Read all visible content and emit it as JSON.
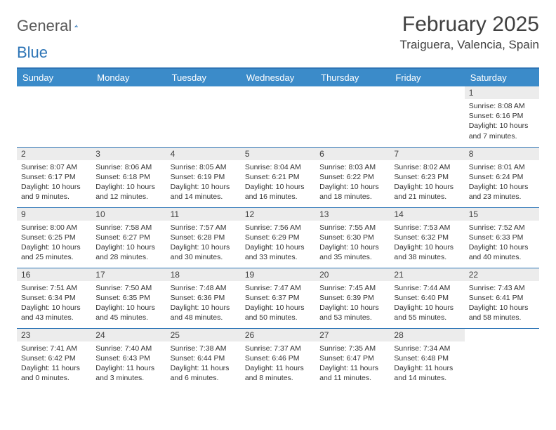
{
  "brand": {
    "word1": "General",
    "word2": "Blue"
  },
  "header": {
    "month": "February 2025",
    "location": "Traiguera, Valencia, Spain"
  },
  "colors": {
    "accent": "#2e75b6",
    "header_bg": "#3b8bc9",
    "daynum_bg": "#ececec",
    "text": "#333333"
  },
  "weekdays": [
    "Sunday",
    "Monday",
    "Tuesday",
    "Wednesday",
    "Thursday",
    "Friday",
    "Saturday"
  ],
  "weeks": [
    [
      null,
      null,
      null,
      null,
      null,
      null,
      {
        "n": "1",
        "sr": "8:08 AM",
        "ss": "6:16 PM",
        "dl": "10 hours and 7 minutes."
      }
    ],
    [
      {
        "n": "2",
        "sr": "8:07 AM",
        "ss": "6:17 PM",
        "dl": "10 hours and 9 minutes."
      },
      {
        "n": "3",
        "sr": "8:06 AM",
        "ss": "6:18 PM",
        "dl": "10 hours and 12 minutes."
      },
      {
        "n": "4",
        "sr": "8:05 AM",
        "ss": "6:19 PM",
        "dl": "10 hours and 14 minutes."
      },
      {
        "n": "5",
        "sr": "8:04 AM",
        "ss": "6:21 PM",
        "dl": "10 hours and 16 minutes."
      },
      {
        "n": "6",
        "sr": "8:03 AM",
        "ss": "6:22 PM",
        "dl": "10 hours and 18 minutes."
      },
      {
        "n": "7",
        "sr": "8:02 AM",
        "ss": "6:23 PM",
        "dl": "10 hours and 21 minutes."
      },
      {
        "n": "8",
        "sr": "8:01 AM",
        "ss": "6:24 PM",
        "dl": "10 hours and 23 minutes."
      }
    ],
    [
      {
        "n": "9",
        "sr": "8:00 AM",
        "ss": "6:25 PM",
        "dl": "10 hours and 25 minutes."
      },
      {
        "n": "10",
        "sr": "7:58 AM",
        "ss": "6:27 PM",
        "dl": "10 hours and 28 minutes."
      },
      {
        "n": "11",
        "sr": "7:57 AM",
        "ss": "6:28 PM",
        "dl": "10 hours and 30 minutes."
      },
      {
        "n": "12",
        "sr": "7:56 AM",
        "ss": "6:29 PM",
        "dl": "10 hours and 33 minutes."
      },
      {
        "n": "13",
        "sr": "7:55 AM",
        "ss": "6:30 PM",
        "dl": "10 hours and 35 minutes."
      },
      {
        "n": "14",
        "sr": "7:53 AM",
        "ss": "6:32 PM",
        "dl": "10 hours and 38 minutes."
      },
      {
        "n": "15",
        "sr": "7:52 AM",
        "ss": "6:33 PM",
        "dl": "10 hours and 40 minutes."
      }
    ],
    [
      {
        "n": "16",
        "sr": "7:51 AM",
        "ss": "6:34 PM",
        "dl": "10 hours and 43 minutes."
      },
      {
        "n": "17",
        "sr": "7:50 AM",
        "ss": "6:35 PM",
        "dl": "10 hours and 45 minutes."
      },
      {
        "n": "18",
        "sr": "7:48 AM",
        "ss": "6:36 PM",
        "dl": "10 hours and 48 minutes."
      },
      {
        "n": "19",
        "sr": "7:47 AM",
        "ss": "6:37 PM",
        "dl": "10 hours and 50 minutes."
      },
      {
        "n": "20",
        "sr": "7:45 AM",
        "ss": "6:39 PM",
        "dl": "10 hours and 53 minutes."
      },
      {
        "n": "21",
        "sr": "7:44 AM",
        "ss": "6:40 PM",
        "dl": "10 hours and 55 minutes."
      },
      {
        "n": "22",
        "sr": "7:43 AM",
        "ss": "6:41 PM",
        "dl": "10 hours and 58 minutes."
      }
    ],
    [
      {
        "n": "23",
        "sr": "7:41 AM",
        "ss": "6:42 PM",
        "dl": "11 hours and 0 minutes."
      },
      {
        "n": "24",
        "sr": "7:40 AM",
        "ss": "6:43 PM",
        "dl": "11 hours and 3 minutes."
      },
      {
        "n": "25",
        "sr": "7:38 AM",
        "ss": "6:44 PM",
        "dl": "11 hours and 6 minutes."
      },
      {
        "n": "26",
        "sr": "7:37 AM",
        "ss": "6:46 PM",
        "dl": "11 hours and 8 minutes."
      },
      {
        "n": "27",
        "sr": "7:35 AM",
        "ss": "6:47 PM",
        "dl": "11 hours and 11 minutes."
      },
      {
        "n": "28",
        "sr": "7:34 AM",
        "ss": "6:48 PM",
        "dl": "11 hours and 14 minutes."
      },
      null
    ]
  ],
  "labels": {
    "sunrise": "Sunrise:",
    "sunset": "Sunset:",
    "daylight": "Daylight:"
  }
}
